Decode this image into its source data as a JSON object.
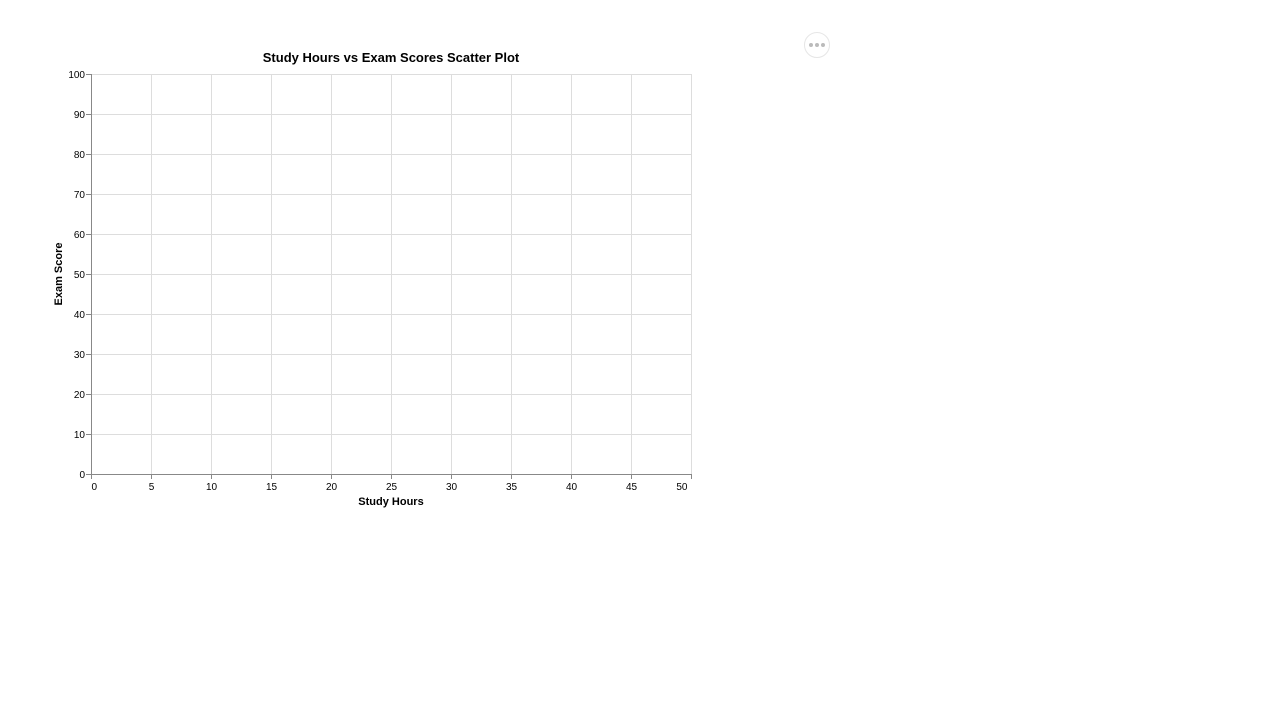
{
  "chart_data": {
    "type": "scatter",
    "title": "Study Hours vs Exam Scores Scatter Plot",
    "xlabel": "Study Hours",
    "ylabel": "Exam Score",
    "xlim": [
      0,
      50
    ],
    "ylim": [
      0,
      100
    ],
    "x_ticks": [
      0,
      5,
      10,
      15,
      20,
      25,
      30,
      35,
      40,
      45,
      50
    ],
    "y_ticks": [
      0,
      10,
      20,
      30,
      40,
      50,
      60,
      70,
      80,
      90,
      100
    ],
    "grid": true,
    "points": []
  },
  "actions_menu": {
    "icon": "more-horizontal-icon"
  }
}
